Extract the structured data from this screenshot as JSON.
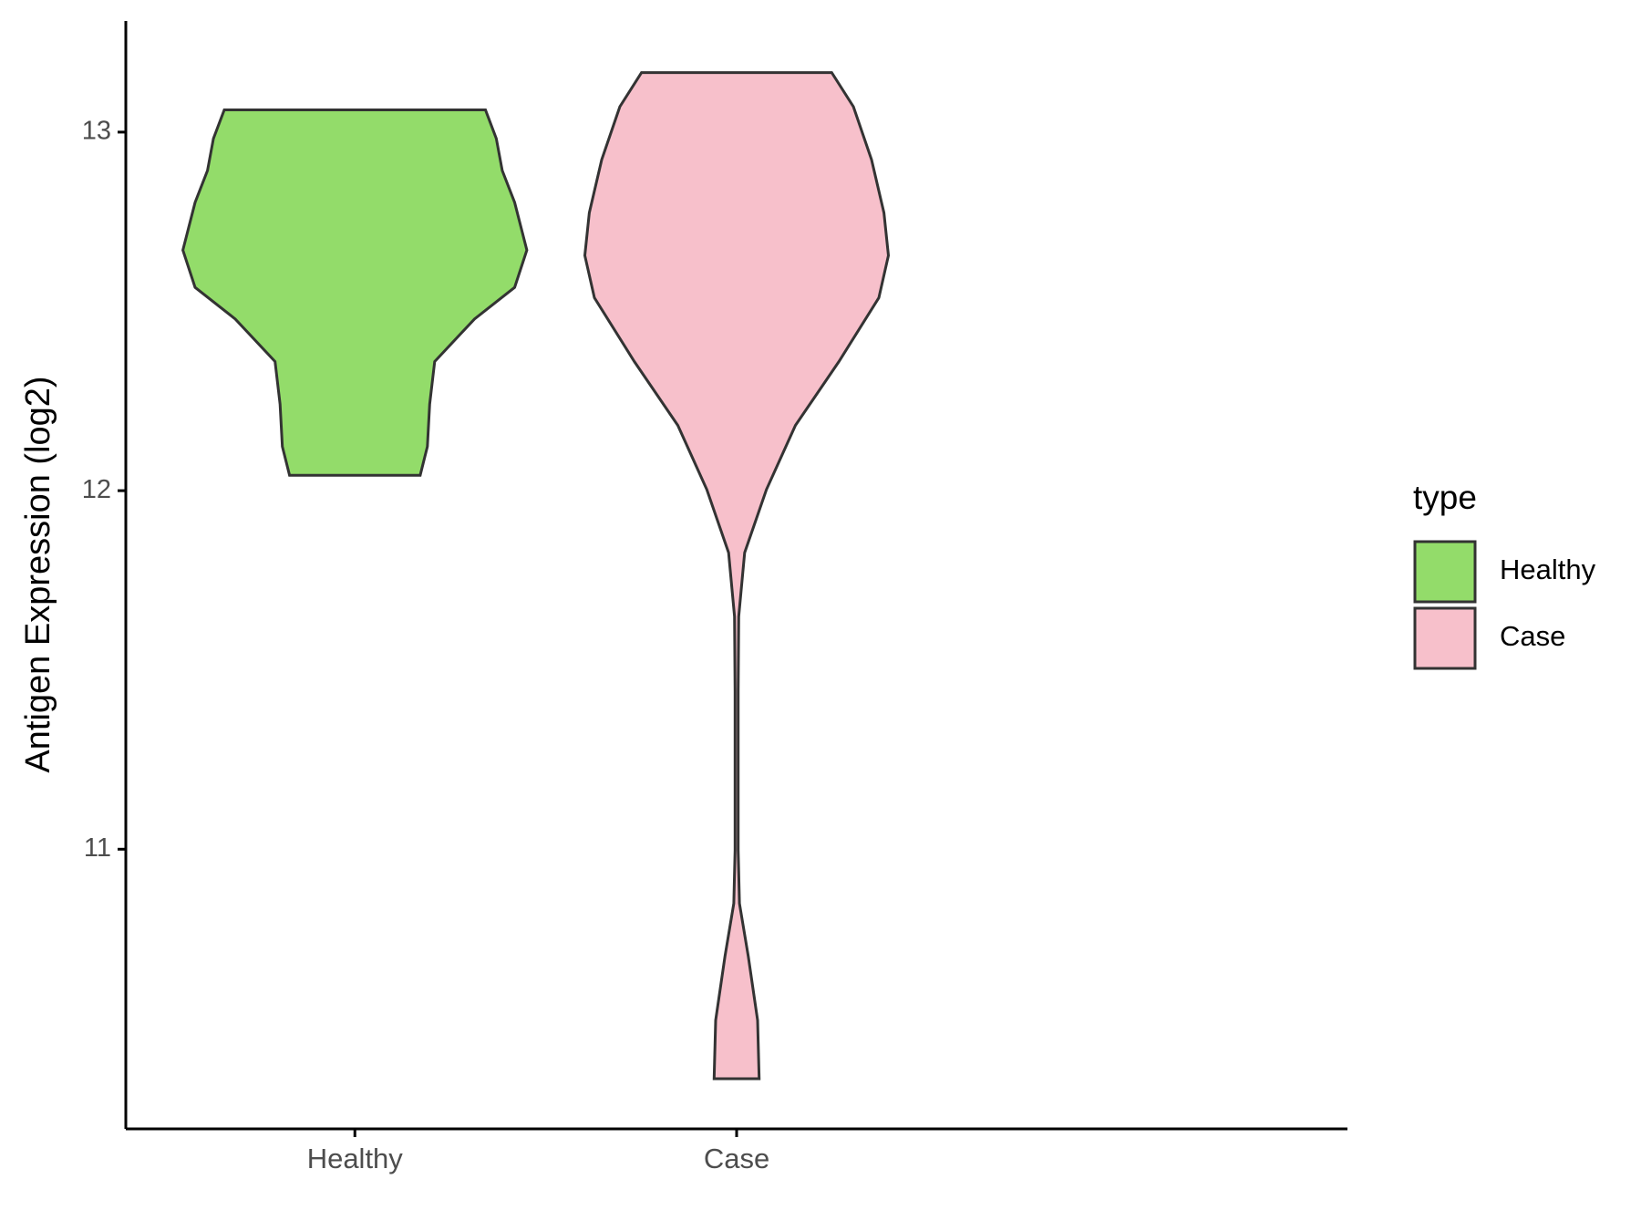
{
  "chart_data": {
    "type": "violin",
    "y_label": "Antigen Expression (log2)",
    "categories": [
      "Healthy",
      "Case"
    ],
    "ylim": [
      10.22,
      13.31
    ],
    "yticks": [
      11,
      12,
      13
    ],
    "legend_title": "type",
    "series": [
      {
        "name": "Healthy",
        "color": "#93dc6a",
        "y": [
          13.062,
          12.982,
          12.893,
          12.804,
          12.671,
          12.567,
          12.479,
          12.36,
          12.241,
          12.123,
          12.043
        ],
        "density": [
          0.684,
          0.741,
          0.772,
          0.837,
          0.901,
          0.837,
          0.627,
          0.418,
          0.392,
          0.38,
          0.342
        ]
      },
      {
        "name": "Case",
        "color": "#f7c0cb",
        "y": [
          13.166,
          13.071,
          12.923,
          12.775,
          12.656,
          12.538,
          12.36,
          12.182,
          12.003,
          11.827,
          11.649,
          11.441,
          10.997,
          10.849,
          10.701,
          10.523,
          10.36
        ],
        "density": [
          0.498,
          0.612,
          0.707,
          0.772,
          0.795,
          0.745,
          0.536,
          0.308,
          0.156,
          0.042,
          0.011,
          0.008,
          0.008,
          0.015,
          0.061,
          0.11,
          0.118
        ]
      }
    ]
  }
}
